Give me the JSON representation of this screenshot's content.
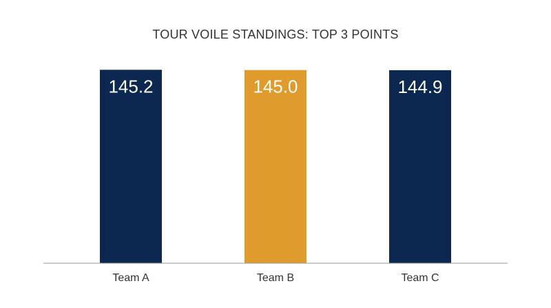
{
  "chart_data": {
    "type": "bar",
    "title": "TOUR VOILE STANDINGS: TOP 3 POINTS",
    "xlabel": "",
    "ylabel": "",
    "categories": [
      "Team A",
      "Team B",
      "Team C"
    ],
    "values": [
      145.2,
      145.0,
      144.9
    ],
    "data_labels": [
      "145.2",
      "145.0",
      "144.9"
    ],
    "ylim": [
      0,
      150
    ],
    "grid": false,
    "legend": "none",
    "colors": {
      "bars": [
        "#0c2850",
        "#e09b2d",
        "#0c2850"
      ],
      "baseline": "#9a9a9a",
      "text": "#333333",
      "data_label": "#ffffff"
    }
  }
}
